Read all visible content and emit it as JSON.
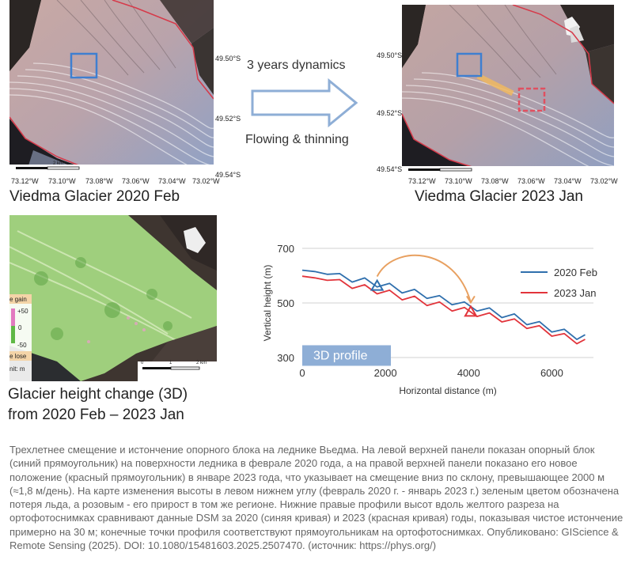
{
  "top_left": {
    "title": "Viedma Glacier 2020 Feb",
    "lat_labels": [
      "49.50°S",
      "49.52°S",
      "49.54°S"
    ],
    "lon_labels": [
      "73.12°W",
      "73.10°W",
      "73.08°W",
      "73.06°W",
      "73.04°W",
      "73.02°W"
    ],
    "scale_label": "2 km"
  },
  "top_right": {
    "title": "Viedma Glacier 2023 Jan",
    "lat_labels": [
      "49.50°S",
      "49.52°S",
      "49.54°S"
    ],
    "lon_labels": [
      "73.12°W",
      "73.10°W",
      "73.08°W",
      "73.06°W",
      "73.04°W",
      "73.02°W"
    ]
  },
  "arrow": {
    "top_text": "3 years dynamics",
    "bottom_text": "Flowing & thinning"
  },
  "bottom_left": {
    "legend_gain": "e gain",
    "legend_ticks": [
      "+50",
      "0",
      "-50"
    ],
    "legend_lose": "e lose",
    "legend_unit": "nit: m",
    "scale_ticks": [
      "0",
      "1",
      "2 km"
    ],
    "title_line1": "Glacier height change (3D)",
    "title_line2": "from 2020 Feb – 2023 Jan"
  },
  "chart_data": {
    "type": "line",
    "title": "",
    "badge": "3D profile",
    "xlabel": "Horizontal distance (m)",
    "ylabel": "Vertical height (m)",
    "xlim": [
      0,
      7000
    ],
    "ylim": [
      300,
      700
    ],
    "x_ticks": [
      0,
      2000,
      4000,
      6000
    ],
    "y_ticks": [
      300,
      500,
      700
    ],
    "x_tick_labels": [
      "0",
      "2000",
      "4000",
      "6000"
    ],
    "y_tick_labels": [
      "300",
      "500",
      "700"
    ],
    "grid": "horizontal",
    "legend_position": "top-right",
    "series": [
      {
        "name": "2020 Feb",
        "color": "#2f6fad",
        "x": [
          0,
          300,
          600,
          900,
          1200,
          1500,
          1800,
          2100,
          2400,
          2700,
          3000,
          3300,
          3600,
          3900,
          4200,
          4500,
          4800,
          5100,
          5400,
          5700,
          6000,
          6300,
          6600,
          6800
        ],
        "y": [
          620,
          615,
          605,
          596,
          588,
          580,
          570,
          560,
          548,
          538,
          528,
          515,
          505,
          492,
          482,
          470,
          458,
          448,
          432,
          420,
          405,
          392,
          378,
          372
        ]
      },
      {
        "name": "2023 Jan",
        "color": "#e2343b",
        "x": [
          0,
          300,
          600,
          900,
          1200,
          1500,
          1800,
          2100,
          2400,
          2700,
          3000,
          3300,
          3600,
          3900,
          4200,
          4500,
          4800,
          5100,
          5400,
          5700,
          6000,
          6300,
          6600,
          6800
        ],
        "y": [
          598,
          592,
          583,
          574,
          565,
          555,
          545,
          535,
          523,
          513,
          502,
          492,
          482,
          472,
          462,
          452,
          442,
          430,
          418,
          405,
          390,
          376,
          362,
          355
        ]
      }
    ],
    "markers": [
      {
        "series": "2020 Feb",
        "x": 1800,
        "y": 562,
        "shape": "triangle"
      },
      {
        "series": "2023 Jan",
        "x": 4050,
        "y": 467,
        "shape": "triangle"
      }
    ],
    "annotation_arrow_color": "#e8a060"
  },
  "caption": "Трехлетнее смещение и истончение опорного блока на леднике Вьедма. На левой верхней панели показан опорный блок (синий прямоугольник) на поверхности ледника в феврале 2020 года, а на правой верхней панели показано его новое положение (красный прямоугольник) в январе 2023 года, что указывает на смещение вниз по склону, превышающее 2000 м (≈1,8 м/день). На карте изменения высоты в левом нижнем углу (февраль 2020 г. - январь 2023 г.) зеленым цветом обозначена потеря льда, а розовым - его прирост в том же регионе. Нижние правые профили высот вдоль желтого разреза на ортофотоснимках сравнивают данные DSM за 2020 (синяя кривая) и 2023 (красная кривая) годы, показывая чистое истончение примерно на 30 м; конечные точки профиля соответствуют прямоугольникам на ортофотоснимках. Опубликовано: GIScience & Remote Sensing (2025). DOI: 10.1080/15481603.2025.2507470. (источник: https://phys.org/)"
}
